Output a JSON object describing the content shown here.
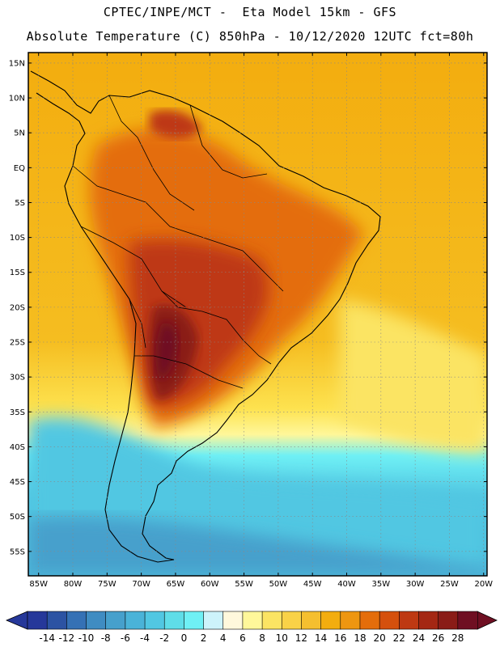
{
  "header": {
    "line1": "CPTEC/INPE/MCT -  Eta Model 15km - GFS",
    "line2": "Absolute Temperature (C) 850hPa - 10/12/2020 12UTC fct=80h"
  },
  "map": {
    "lat_range": [
      -58.5,
      16.5
    ],
    "lon_range": [
      -86.5,
      -19.5
    ],
    "lat_ticks": [
      "15N",
      "10N",
      "5N",
      "EQ",
      "5S",
      "10S",
      "15S",
      "20S",
      "25S",
      "30S",
      "35S",
      "40S",
      "45S",
      "50S",
      "55S"
    ],
    "lon_ticks": [
      "85W",
      "80W",
      "75W",
      "70W",
      "65W",
      "60W",
      "55W",
      "50W",
      "45W",
      "40W",
      "35W",
      "30W",
      "25W",
      "20W"
    ],
    "lat_values": [
      15,
      10,
      5,
      0,
      -5,
      -10,
      -15,
      -20,
      -25,
      -30,
      -35,
      -40,
      -45,
      -50,
      -55
    ],
    "lon_values": [
      -85,
      -80,
      -75,
      -70,
      -65,
      -60,
      -55,
      -50,
      -45,
      -40,
      -35,
      -30,
      -25,
      -20
    ]
  },
  "colorbar": {
    "labels": [
      "-14",
      "-12",
      "-10",
      "-8",
      "-6",
      "-4",
      "-2",
      "0",
      "2",
      "4",
      "6",
      "8",
      "10",
      "12",
      "14",
      "16",
      "18",
      "20",
      "22",
      "24",
      "26",
      "28"
    ],
    "colors": [
      "#26389a",
      "#2c53a3",
      "#3571b5",
      "#3f8cc2",
      "#46a0cc",
      "#4ab3d8",
      "#51c7e2",
      "#5fdde8",
      "#6ff0f5",
      "#cdf3fb",
      "#fff8dc",
      "#fff79a",
      "#fbe463",
      "#f9d247",
      "#f5bf2f",
      "#f3ad0f",
      "#ee9610",
      "#e46d0b",
      "#d5500d",
      "#be3912",
      "#a42713",
      "#8a1c17",
      "#6f0f22"
    ],
    "left_arrow_color": "#26389a",
    "right_arrow_color": "#6f0f22"
  }
}
